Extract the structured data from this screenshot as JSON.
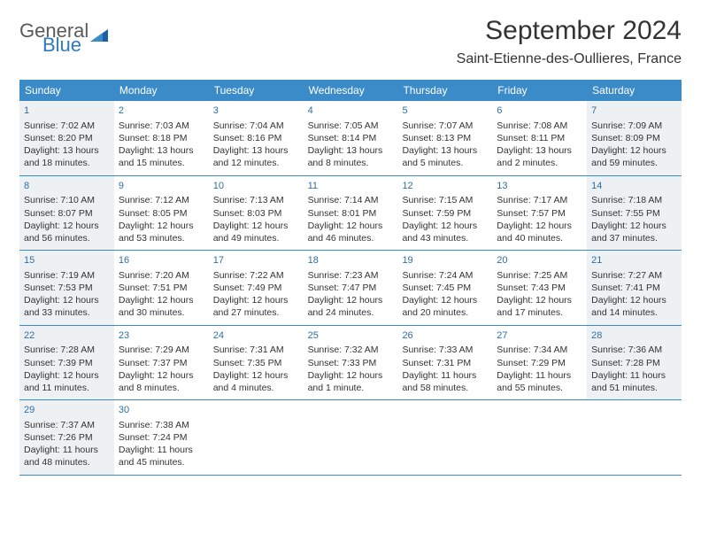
{
  "logo": {
    "text1": "General",
    "text2": "Blue"
  },
  "header": {
    "title": "September 2024",
    "location": "Saint-Etienne-des-Oullieres, France"
  },
  "weekdays": [
    "Sunday",
    "Monday",
    "Tuesday",
    "Wednesday",
    "Thursday",
    "Friday",
    "Saturday"
  ],
  "colors": {
    "header_bg": "#3b8bc9",
    "daynum": "#2f6fa3",
    "shaded": "#eef1f3",
    "border": "#3b8bc9"
  },
  "weeks": [
    [
      {
        "day": "1",
        "shaded": true,
        "sunrise": "Sunrise: 7:02 AM",
        "sunset": "Sunset: 8:20 PM",
        "daylight": "Daylight: 13 hours and 18 minutes."
      },
      {
        "day": "2",
        "shaded": false,
        "sunrise": "Sunrise: 7:03 AM",
        "sunset": "Sunset: 8:18 PM",
        "daylight": "Daylight: 13 hours and 15 minutes."
      },
      {
        "day": "3",
        "shaded": false,
        "sunrise": "Sunrise: 7:04 AM",
        "sunset": "Sunset: 8:16 PM",
        "daylight": "Daylight: 13 hours and 12 minutes."
      },
      {
        "day": "4",
        "shaded": false,
        "sunrise": "Sunrise: 7:05 AM",
        "sunset": "Sunset: 8:14 PM",
        "daylight": "Daylight: 13 hours and 8 minutes."
      },
      {
        "day": "5",
        "shaded": false,
        "sunrise": "Sunrise: 7:07 AM",
        "sunset": "Sunset: 8:13 PM",
        "daylight": "Daylight: 13 hours and 5 minutes."
      },
      {
        "day": "6",
        "shaded": false,
        "sunrise": "Sunrise: 7:08 AM",
        "sunset": "Sunset: 8:11 PM",
        "daylight": "Daylight: 13 hours and 2 minutes."
      },
      {
        "day": "7",
        "shaded": true,
        "sunrise": "Sunrise: 7:09 AM",
        "sunset": "Sunset: 8:09 PM",
        "daylight": "Daylight: 12 hours and 59 minutes."
      }
    ],
    [
      {
        "day": "8",
        "shaded": true,
        "sunrise": "Sunrise: 7:10 AM",
        "sunset": "Sunset: 8:07 PM",
        "daylight": "Daylight: 12 hours and 56 minutes."
      },
      {
        "day": "9",
        "shaded": false,
        "sunrise": "Sunrise: 7:12 AM",
        "sunset": "Sunset: 8:05 PM",
        "daylight": "Daylight: 12 hours and 53 minutes."
      },
      {
        "day": "10",
        "shaded": false,
        "sunrise": "Sunrise: 7:13 AM",
        "sunset": "Sunset: 8:03 PM",
        "daylight": "Daylight: 12 hours and 49 minutes."
      },
      {
        "day": "11",
        "shaded": false,
        "sunrise": "Sunrise: 7:14 AM",
        "sunset": "Sunset: 8:01 PM",
        "daylight": "Daylight: 12 hours and 46 minutes."
      },
      {
        "day": "12",
        "shaded": false,
        "sunrise": "Sunrise: 7:15 AM",
        "sunset": "Sunset: 7:59 PM",
        "daylight": "Daylight: 12 hours and 43 minutes."
      },
      {
        "day": "13",
        "shaded": false,
        "sunrise": "Sunrise: 7:17 AM",
        "sunset": "Sunset: 7:57 PM",
        "daylight": "Daylight: 12 hours and 40 minutes."
      },
      {
        "day": "14",
        "shaded": true,
        "sunrise": "Sunrise: 7:18 AM",
        "sunset": "Sunset: 7:55 PM",
        "daylight": "Daylight: 12 hours and 37 minutes."
      }
    ],
    [
      {
        "day": "15",
        "shaded": true,
        "sunrise": "Sunrise: 7:19 AM",
        "sunset": "Sunset: 7:53 PM",
        "daylight": "Daylight: 12 hours and 33 minutes."
      },
      {
        "day": "16",
        "shaded": false,
        "sunrise": "Sunrise: 7:20 AM",
        "sunset": "Sunset: 7:51 PM",
        "daylight": "Daylight: 12 hours and 30 minutes."
      },
      {
        "day": "17",
        "shaded": false,
        "sunrise": "Sunrise: 7:22 AM",
        "sunset": "Sunset: 7:49 PM",
        "daylight": "Daylight: 12 hours and 27 minutes."
      },
      {
        "day": "18",
        "shaded": false,
        "sunrise": "Sunrise: 7:23 AM",
        "sunset": "Sunset: 7:47 PM",
        "daylight": "Daylight: 12 hours and 24 minutes."
      },
      {
        "day": "19",
        "shaded": false,
        "sunrise": "Sunrise: 7:24 AM",
        "sunset": "Sunset: 7:45 PM",
        "daylight": "Daylight: 12 hours and 20 minutes."
      },
      {
        "day": "20",
        "shaded": false,
        "sunrise": "Sunrise: 7:25 AM",
        "sunset": "Sunset: 7:43 PM",
        "daylight": "Daylight: 12 hours and 17 minutes."
      },
      {
        "day": "21",
        "shaded": true,
        "sunrise": "Sunrise: 7:27 AM",
        "sunset": "Sunset: 7:41 PM",
        "daylight": "Daylight: 12 hours and 14 minutes."
      }
    ],
    [
      {
        "day": "22",
        "shaded": true,
        "sunrise": "Sunrise: 7:28 AM",
        "sunset": "Sunset: 7:39 PM",
        "daylight": "Daylight: 12 hours and 11 minutes."
      },
      {
        "day": "23",
        "shaded": false,
        "sunrise": "Sunrise: 7:29 AM",
        "sunset": "Sunset: 7:37 PM",
        "daylight": "Daylight: 12 hours and 8 minutes."
      },
      {
        "day": "24",
        "shaded": false,
        "sunrise": "Sunrise: 7:31 AM",
        "sunset": "Sunset: 7:35 PM",
        "daylight": "Daylight: 12 hours and 4 minutes."
      },
      {
        "day": "25",
        "shaded": false,
        "sunrise": "Sunrise: 7:32 AM",
        "sunset": "Sunset: 7:33 PM",
        "daylight": "Daylight: 12 hours and 1 minute."
      },
      {
        "day": "26",
        "shaded": false,
        "sunrise": "Sunrise: 7:33 AM",
        "sunset": "Sunset: 7:31 PM",
        "daylight": "Daylight: 11 hours and 58 minutes."
      },
      {
        "day": "27",
        "shaded": false,
        "sunrise": "Sunrise: 7:34 AM",
        "sunset": "Sunset: 7:29 PM",
        "daylight": "Daylight: 11 hours and 55 minutes."
      },
      {
        "day": "28",
        "shaded": true,
        "sunrise": "Sunrise: 7:36 AM",
        "sunset": "Sunset: 7:28 PM",
        "daylight": "Daylight: 11 hours and 51 minutes."
      }
    ],
    [
      {
        "day": "29",
        "shaded": true,
        "sunrise": "Sunrise: 7:37 AM",
        "sunset": "Sunset: 7:26 PM",
        "daylight": "Daylight: 11 hours and 48 minutes."
      },
      {
        "day": "30",
        "shaded": false,
        "sunrise": "Sunrise: 7:38 AM",
        "sunset": "Sunset: 7:24 PM",
        "daylight": "Daylight: 11 hours and 45 minutes."
      },
      {
        "empty": true
      },
      {
        "empty": true
      },
      {
        "empty": true
      },
      {
        "empty": true
      },
      {
        "empty": true
      }
    ]
  ]
}
